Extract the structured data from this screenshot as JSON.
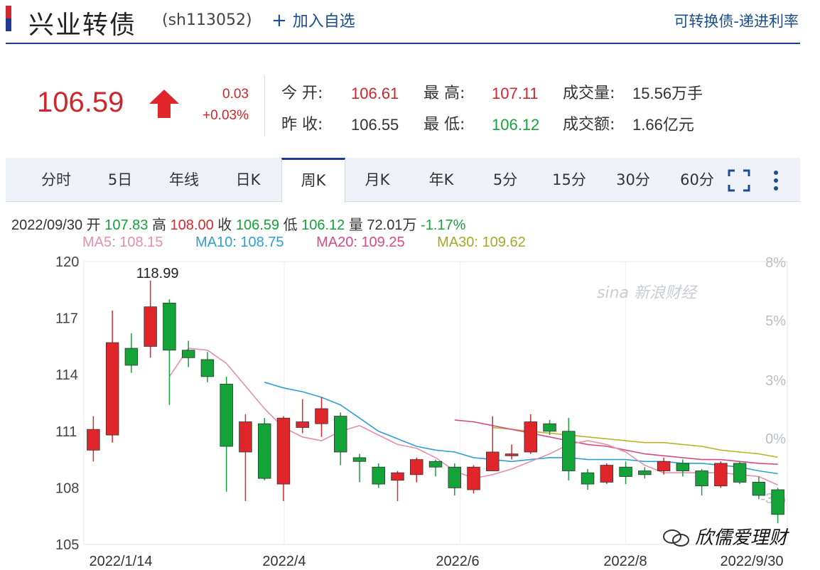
{
  "header": {
    "title": "兴业转债",
    "code": "(sh113052)",
    "add_label": "加入自选",
    "right_link": "可转换债-递进利率"
  },
  "quote": {
    "price": "106.59",
    "change": "0.03",
    "change_pct": "+0.03%",
    "open_label": "今 开:",
    "open": "106.61",
    "high_label": "最 高:",
    "high": "107.11",
    "vol_label": "成交量:",
    "vol": "15.56万手",
    "prev_label": "昨 收:",
    "prev": "106.55",
    "low_label": "最 低:",
    "low": "106.12",
    "amt_label": "成交额:",
    "amt": "1.66亿元"
  },
  "tabs": [
    "分时",
    "5日",
    "年线",
    "日K",
    "周K",
    "月K",
    "年K",
    "5分",
    "15分",
    "30分",
    "60分"
  ],
  "active_tab": "周K",
  "info": {
    "date": "2022/09/30",
    "open_label": "开",
    "open": "107.83",
    "high_label": "高",
    "high": "108.00",
    "close_label": "收",
    "close": "106.59",
    "low_label": "低",
    "low": "106.12",
    "vol_label": "量",
    "vol": "72.01万",
    "pct": "-1.17%"
  },
  "ma": {
    "ma5": "MA5: 108.15",
    "ma10": "MA10: 108.75",
    "ma20": "MA20: 109.25",
    "ma30": "MA30: 109.62"
  },
  "watermark": "sina 新浪财经",
  "brand": "欣儒爱理财",
  "colors": {
    "up": "#e0262b",
    "down": "#13a338",
    "ma5": "#e48fb0",
    "ma10": "#2e9fd6",
    "ma20": "#d84a86",
    "ma30": "#b5b52a",
    "accent": "#1f3a93"
  },
  "chart_data": {
    "type": "candlestick",
    "period": "weekly",
    "ylim": [
      105,
      120
    ],
    "y_ticks": [
      105,
      108,
      111,
      114,
      117,
      120
    ],
    "right_ticks": [
      "8%",
      "5%",
      "3%",
      "0%",
      "-3%"
    ],
    "x_labels": [
      "2022/1/14",
      "2022/4",
      "2022/6",
      "2022/8",
      "2022/9/30"
    ],
    "max_label": "118.99",
    "candles": [
      {
        "o": 110.0,
        "c": 111.1,
        "h": 111.8,
        "l": 109.4
      },
      {
        "o": 110.8,
        "c": 115.7,
        "h": 117.4,
        "l": 110.4
      },
      {
        "o": 115.4,
        "c": 114.5,
        "h": 116.2,
        "l": 114.1
      },
      {
        "o": 115.5,
        "c": 117.6,
        "h": 118.99,
        "l": 114.9
      },
      {
        "o": 117.8,
        "c": 115.3,
        "h": 118.0,
        "l": 112.4
      },
      {
        "o": 115.3,
        "c": 114.9,
        "h": 115.8,
        "l": 114.4
      },
      {
        "o": 114.8,
        "c": 113.9,
        "h": 115.2,
        "l": 113.6
      },
      {
        "o": 113.5,
        "c": 110.2,
        "h": 113.9,
        "l": 107.8
      },
      {
        "o": 109.9,
        "c": 111.5,
        "h": 111.9,
        "l": 107.3
      },
      {
        "o": 111.4,
        "c": 108.5,
        "h": 111.7,
        "l": 108.4
      },
      {
        "o": 108.2,
        "c": 111.7,
        "h": 111.8,
        "l": 107.3
      },
      {
        "o": 111.2,
        "c": 111.5,
        "h": 112.7,
        "l": 110.9
      },
      {
        "o": 111.4,
        "c": 112.2,
        "h": 112.8,
        "l": 110.7
      },
      {
        "o": 111.8,
        "c": 109.9,
        "h": 112.0,
        "l": 109.2
      },
      {
        "o": 109.6,
        "c": 109.4,
        "h": 109.8,
        "l": 108.3
      },
      {
        "o": 109.1,
        "c": 108.2,
        "h": 109.3,
        "l": 108.0
      },
      {
        "o": 108.4,
        "c": 108.8,
        "h": 108.9,
        "l": 107.3
      },
      {
        "o": 108.7,
        "c": 109.5,
        "h": 109.6,
        "l": 108.3
      },
      {
        "o": 109.4,
        "c": 109.1,
        "h": 109.5,
        "l": 108.6
      },
      {
        "o": 109.1,
        "c": 108.0,
        "h": 109.3,
        "l": 107.6
      },
      {
        "o": 107.9,
        "c": 109.1,
        "h": 109.2,
        "l": 107.7
      },
      {
        "o": 108.9,
        "c": 109.9,
        "h": 111.8,
        "l": 108.9
      },
      {
        "o": 109.7,
        "c": 109.8,
        "h": 110.3,
        "l": 109.5
      },
      {
        "o": 109.9,
        "c": 111.5,
        "h": 111.9,
        "l": 109.8
      },
      {
        "o": 111.4,
        "c": 111.0,
        "h": 111.6,
        "l": 110.8
      },
      {
        "o": 111.0,
        "c": 108.9,
        "h": 111.7,
        "l": 108.4
      },
      {
        "o": 108.8,
        "c": 108.2,
        "h": 109.0,
        "l": 107.9
      },
      {
        "o": 108.3,
        "c": 109.2,
        "h": 109.3,
        "l": 108.2
      },
      {
        "o": 109.1,
        "c": 108.6,
        "h": 109.4,
        "l": 108.2
      },
      {
        "o": 108.9,
        "c": 108.7,
        "h": 109.1,
        "l": 108.5
      },
      {
        "o": 108.9,
        "c": 109.4,
        "h": 109.6,
        "l": 108.7
      },
      {
        "o": 109.3,
        "c": 108.9,
        "h": 109.5,
        "l": 108.6
      },
      {
        "o": 108.9,
        "c": 108.1,
        "h": 109.0,
        "l": 107.6
      },
      {
        "o": 108.1,
        "c": 109.3,
        "h": 109.4,
        "l": 108.0
      },
      {
        "o": 109.3,
        "c": 108.3,
        "h": 109.4,
        "l": 108.2
      },
      {
        "o": 108.3,
        "c": 107.6,
        "h": 108.6,
        "l": 107.4
      },
      {
        "o": 107.9,
        "c": 106.59,
        "h": 108.0,
        "l": 106.12
      }
    ],
    "ma5": [
      null,
      null,
      null,
      null,
      113.9,
      115.4,
      115.3,
      114.6,
      113.4,
      112.2,
      111.2,
      110.7,
      110.5,
      111.0,
      111.3,
      110.8,
      110.3,
      110.1,
      109.6,
      108.9,
      108.5,
      108.7,
      109.0,
      109.4,
      109.8,
      110.3,
      110.5,
      110.3,
      109.9,
      109.2,
      108.8,
      108.8,
      108.8,
      108.8,
      108.7,
      108.6,
      108.15
    ],
    "ma10": [
      null,
      null,
      null,
      null,
      null,
      null,
      null,
      null,
      null,
      113.6,
      113.3,
      113.1,
      112.8,
      112.4,
      111.7,
      111.0,
      110.6,
      110.2,
      110.0,
      109.9,
      109.6,
      109.5,
      109.4,
      109.5,
      109.6,
      109.6,
      109.5,
      109.5,
      109.5,
      109.4,
      109.4,
      109.3,
      109.3,
      109.2,
      109.1,
      108.9,
      108.75
    ],
    "ma20": [
      null,
      null,
      null,
      null,
      null,
      null,
      null,
      null,
      null,
      null,
      null,
      null,
      null,
      null,
      null,
      null,
      null,
      null,
      null,
      111.6,
      111.5,
      111.3,
      111.1,
      110.9,
      110.7,
      110.5,
      110.3,
      110.2,
      110.0,
      109.8,
      109.7,
      109.6,
      109.5,
      109.5,
      109.4,
      109.3,
      109.25
    ],
    "ma30": [
      null,
      null,
      null,
      null,
      null,
      null,
      null,
      null,
      null,
      null,
      null,
      null,
      null,
      null,
      null,
      null,
      null,
      null,
      null,
      null,
      null,
      111.2,
      111.1,
      111.0,
      110.9,
      110.8,
      110.7,
      110.6,
      110.5,
      110.4,
      110.4,
      110.3,
      110.2,
      110.0,
      109.9,
      109.8,
      109.62
    ]
  }
}
